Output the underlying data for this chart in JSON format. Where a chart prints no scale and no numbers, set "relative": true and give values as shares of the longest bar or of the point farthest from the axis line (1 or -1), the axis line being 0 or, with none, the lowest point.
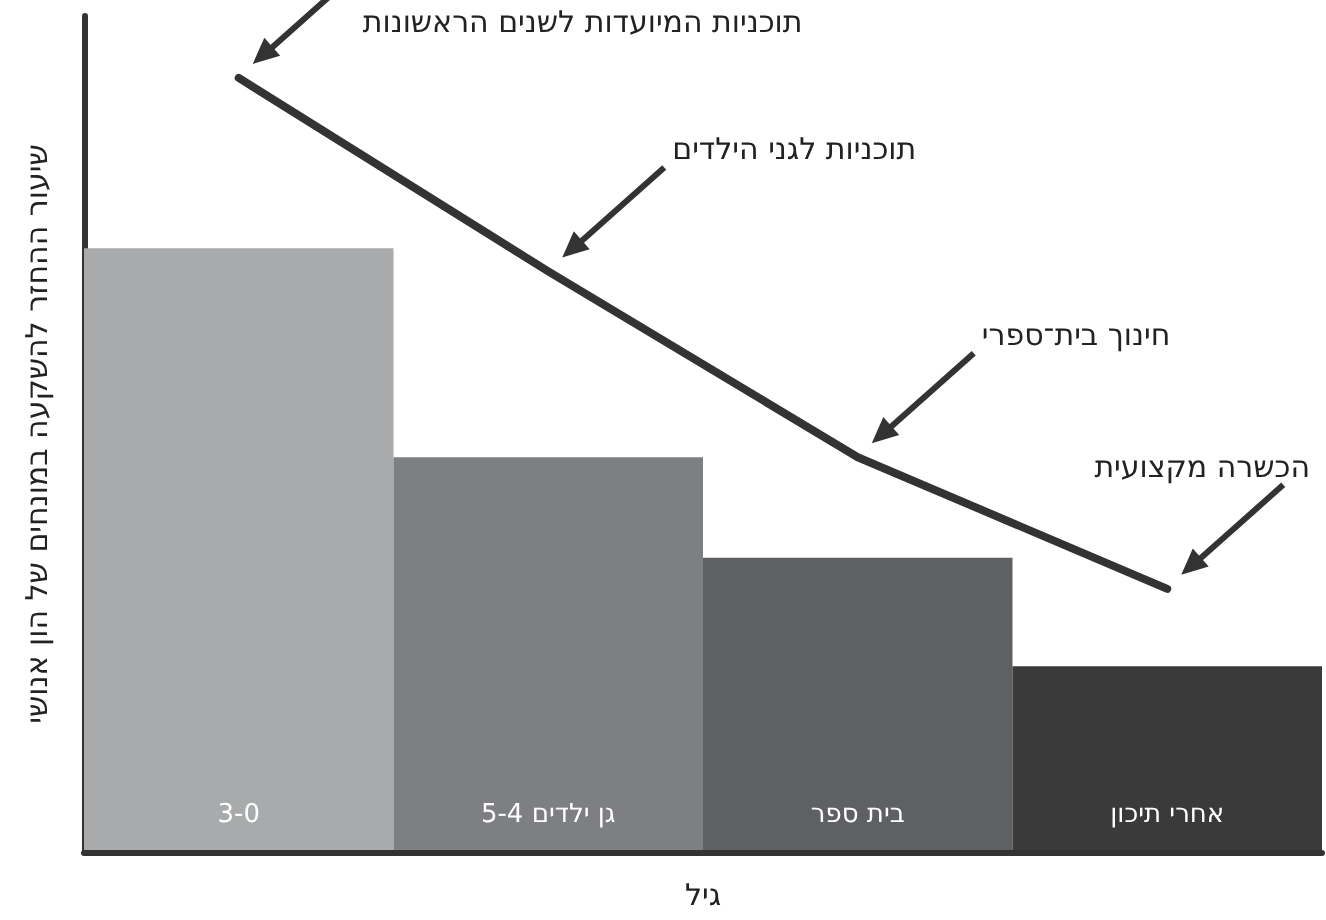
{
  "chart_data": {
    "type": "bar",
    "relative": true,
    "xlabel": "גיל",
    "ylabel": "שיעור ההחזר להשקעה במונחים של הון אנושי",
    "categories": [
      "3-0",
      "5-4 גן ילדים",
      "בית ספר",
      "אחרי תיכון"
    ],
    "series": [
      {
        "values": [
          0.78,
          0.51,
          0.38,
          0.24
        ],
        "colors": [
          "#a9aaab",
          "#7e7f82",
          "#5f6063",
          "#3a3a3a"
        ]
      },
      {
        "type": "line",
        "color": "#333333",
        "values": [
          1.0,
          0.75,
          0.51,
          0.34
        ],
        "marker": "none"
      }
    ],
    "annotations": [
      "תוכניות המיועדות לשנים הראשונות",
      "תוכניות לגני הילדים",
      "חינוך בית־ספרי",
      "הכשרה מקצועית"
    ]
  }
}
